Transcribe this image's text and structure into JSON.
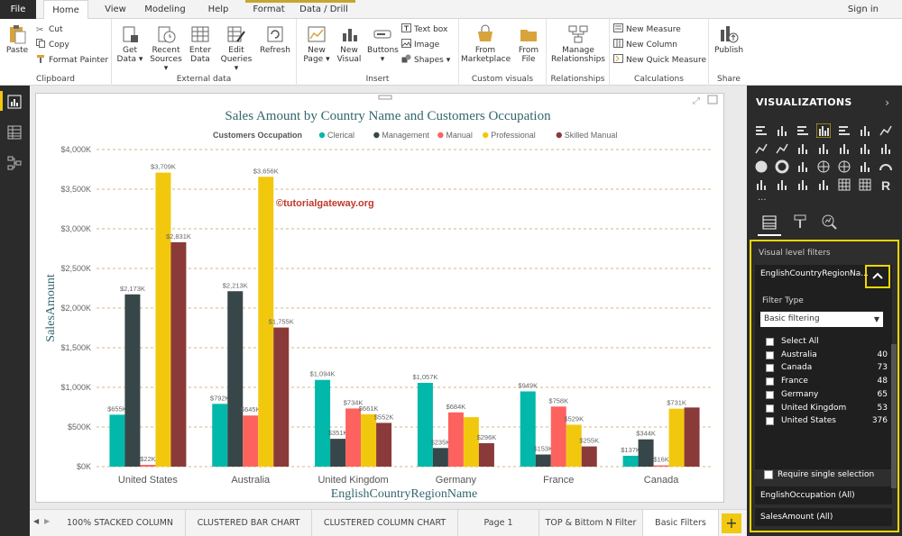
{
  "ribbon_tabs": {
    "file": "File",
    "home": "Home",
    "view": "View",
    "modeling": "Modeling",
    "help": "Help",
    "format": "Format",
    "data_drill": "Data / Drill",
    "sign_in": "Sign in"
  },
  "clipboard": {
    "paste": "Paste",
    "cut": "Cut",
    "copy": "Copy",
    "format_painter": "Format Painter",
    "label": "Clipboard"
  },
  "external_data": {
    "get_data": "Get Data",
    "recent_sources": "Recent Sources",
    "enter_data": "Enter Data",
    "edit_queries": "Edit Queries",
    "refresh": "Refresh",
    "label": "External data"
  },
  "insert": {
    "new_page": "New Page",
    "new_visual": "New Visual",
    "buttons": "Buttons",
    "text_box": "Text box",
    "image": "Image",
    "shapes": "Shapes",
    "label": "Insert"
  },
  "custom_visuals": {
    "from_marketplace": "From Marketplace",
    "from_file": "From File",
    "label": "Custom visuals"
  },
  "relationships": {
    "manage": "Manage Relationships",
    "label": "Relationships"
  },
  "calculations": {
    "new_measure": "New Measure",
    "new_column": "New Column",
    "new_quick_measure": "New Quick Measure",
    "label": "Calculations"
  },
  "share": {
    "publish": "Publish",
    "label": "Share"
  },
  "watermark": "©tutorialgateway.org",
  "page_tabs": [
    "100% STACKED COLUMN",
    "CLUSTERED BAR CHART",
    "CLUSTERED COLUMN CHART",
    "Page 1",
    "TOP & Bittom N Filter",
    "Basic Filters"
  ],
  "add_tab": "+",
  "visualizations": {
    "title": "VISUALIZATIONS",
    "more": "...",
    "visual_level_filters": "Visual level filters",
    "filter_card_title": "EnglishCountryRegionNa...",
    "filter_type_label": "Filter Type",
    "filter_type_value": "Basic filtering",
    "items": [
      {
        "label": "Select All",
        "count": ""
      },
      {
        "label": "Australia",
        "count": "40"
      },
      {
        "label": "Canada",
        "count": "73"
      },
      {
        "label": "France",
        "count": "48"
      },
      {
        "label": "Germany",
        "count": "65"
      },
      {
        "label": "United Kingdom",
        "count": "53"
      },
      {
        "label": "United States",
        "count": "376"
      }
    ],
    "require_single": "Require single selection",
    "occupation_filter": "EnglishOccupation (All)",
    "sales_filter": "SalesAmount (All)"
  },
  "colors": {
    "clerical": "#01b8aa",
    "management": "#374649",
    "manual": "#fd625e",
    "professional": "#f2c80f",
    "skilled_manual": "#8b3a3a",
    "accent": "#f2d600",
    "title": "#33666e"
  },
  "chart_data": {
    "type": "bar",
    "title": "Sales Amount by Country Name and Customers Occupation",
    "legend_title": "Customers Occupation",
    "xlabel": "EnglishCountryRegionName",
    "ylabel": "SalesAmount",
    "ylim": [
      0,
      4000
    ],
    "yticks": [
      "$0K",
      "$500K",
      "$1,000K",
      "$1,500K",
      "$2,000K",
      "$2,500K",
      "$3,000K",
      "$3,500K",
      "$4,000K"
    ],
    "categories": [
      "United States",
      "Australia",
      "United Kingdom",
      "Germany",
      "France",
      "Canada"
    ],
    "series": [
      {
        "name": "Clerical",
        "values": [
          655,
          792,
          1094,
          1057,
          949,
          137
        ],
        "labels": [
          "$655K",
          "$792K",
          "$1,094K",
          "$1,057K",
          "$949K",
          "$137K"
        ]
      },
      {
        "name": "Management",
        "values": [
          2173,
          2213,
          351,
          235,
          153,
          344
        ],
        "labels": [
          "$2,173K",
          "$2,213K",
          "$351K",
          "$235K",
          "$153K",
          "$344K"
        ]
      },
      {
        "name": "Manual",
        "values": [
          22,
          645,
          734,
          684,
          758,
          16
        ],
        "labels": [
          "$22K",
          "$645K",
          "$734K",
          "$684K",
          "$758K",
          "$16K"
        ]
      },
      {
        "name": "Professional",
        "values": [
          3709,
          3656,
          661,
          624,
          529,
          731
        ],
        "labels": [
          "$3,709K",
          "$3,656K",
          "$661K",
          "",
          "$529K",
          "$731K"
        ]
      },
      {
        "name": "Skilled Manual",
        "values": [
          2831,
          1755,
          552,
          296,
          255,
          746
        ],
        "labels": [
          "$2,831K",
          "$1,755K",
          "$552K",
          "$296K",
          "$255K",
          ""
        ]
      }
    ]
  }
}
